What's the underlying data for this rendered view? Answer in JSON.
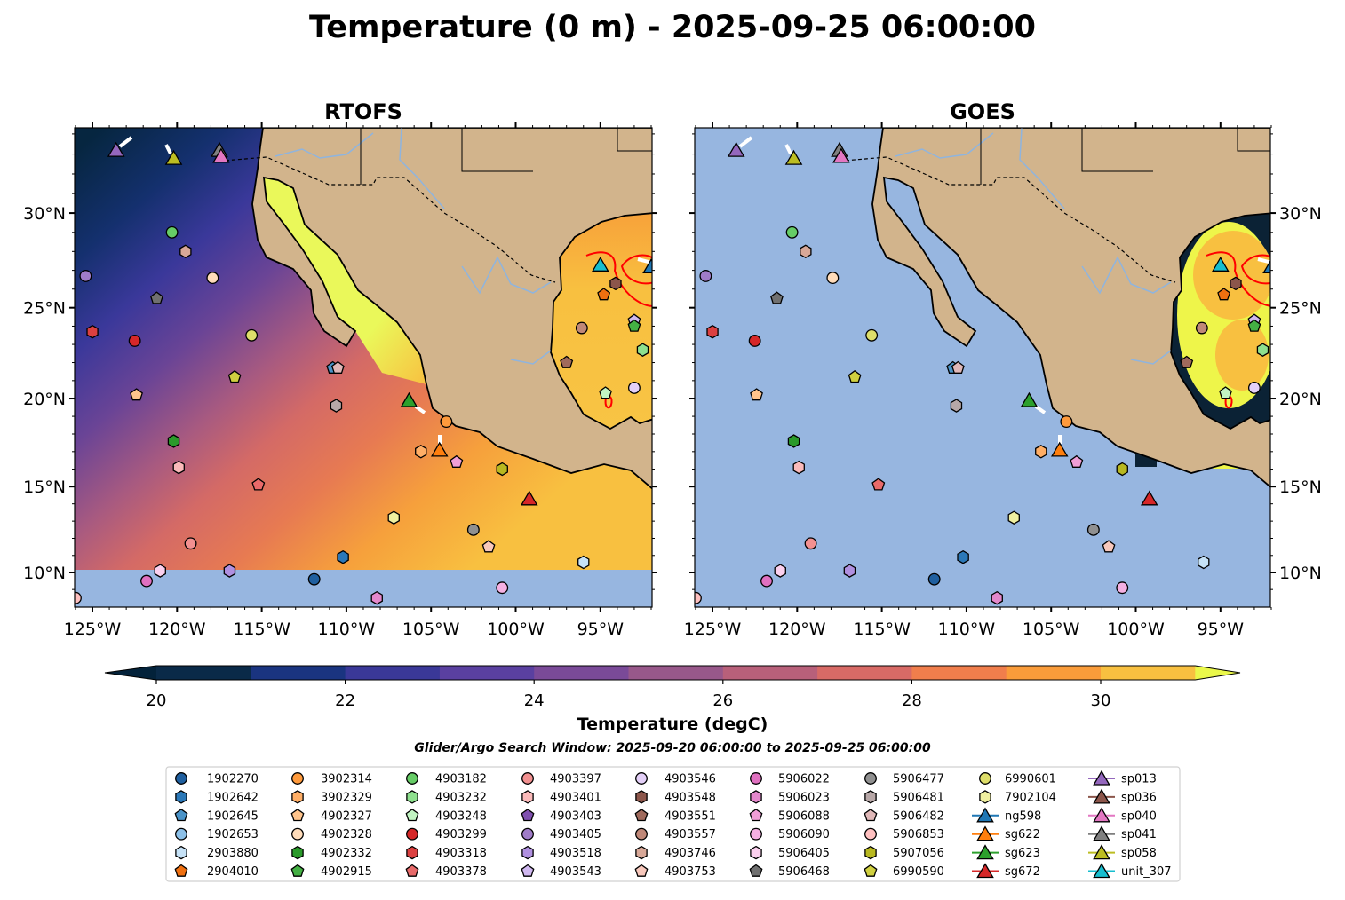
{
  "title": "Temperature (0 m) - 2025-09-25 06:00:00",
  "panels": [
    {
      "title": "RTOFS",
      "field": "rtofs"
    },
    {
      "title": "GOES",
      "field": "goes"
    }
  ],
  "axes": {
    "lon_range": [
      -126.05,
      -91.95
    ],
    "lat_range": [
      8.0,
      34.4
    ],
    "lon_ticks": [
      -125,
      -120,
      -115,
      -110,
      -105,
      -100,
      -95
    ],
    "lon_labels": [
      "125°W",
      "120°W",
      "115°W",
      "110°W",
      "105°W",
      "100°W",
      "95°W"
    ],
    "lat_ticks": [
      10,
      15,
      20,
      25,
      30
    ],
    "lat_labels": [
      "10°N",
      "15°N",
      "20°N",
      "25°N",
      "30°N"
    ]
  },
  "colorbar": {
    "label": "Temperature (degC)",
    "min": 20,
    "max": 31,
    "step": 1,
    "ticks": [
      20,
      22,
      24,
      26,
      28,
      30
    ],
    "tick_labels": [
      "20",
      "22",
      "24",
      "26",
      "28",
      "30"
    ],
    "colors": [
      "#0a2a48",
      "#1a3480",
      "#3a3898",
      "#5a40a0",
      "#7a4a98",
      "#98588a",
      "#b8607a",
      "#d86a66",
      "#f07e4c",
      "#fa9c3a",
      "#f8c040"
    ],
    "under_color": "#03223a",
    "over_color": "#eaf84a"
  },
  "subtitle": "Glider/Argo Search Window: 2025-09-20 06:00:00 to 2025-09-25 06:00:00",
  "legend": [
    {
      "label": "1902270",
      "color": "#1f5f9f",
      "shape": "o"
    },
    {
      "label": "1902642",
      "color": "#2b78b8",
      "shape": "h"
    },
    {
      "label": "1902645",
      "color": "#4a93c8",
      "shape": "p"
    },
    {
      "label": "1902653",
      "color": "#8cc0e8",
      "shape": "o"
    },
    {
      "label": "2903880",
      "color": "#c6e2f7",
      "shape": "h"
    },
    {
      "label": "2904010",
      "color": "#f07010",
      "shape": "p"
    },
    {
      "label": "3902314",
      "color": "#ff9a3c",
      "shape": "o"
    },
    {
      "label": "3902329",
      "color": "#ffae66",
      "shape": "h"
    },
    {
      "label": "4902327",
      "color": "#ffc48c",
      "shape": "p"
    },
    {
      "label": "4902328",
      "color": "#ffdcba",
      "shape": "o"
    },
    {
      "label": "4902332",
      "color": "#2a9a2a",
      "shape": "h"
    },
    {
      "label": "4902915",
      "color": "#44b044",
      "shape": "p"
    },
    {
      "label": "4903182",
      "color": "#66cc66",
      "shape": "o"
    },
    {
      "label": "4903232",
      "color": "#8ee08e",
      "shape": "h"
    },
    {
      "label": "4903248",
      "color": "#c2f5c2",
      "shape": "p"
    },
    {
      "label": "4903299",
      "color": "#d62728",
      "shape": "o"
    },
    {
      "label": "4903318",
      "color": "#dc4040",
      "shape": "h"
    },
    {
      "label": "4903378",
      "color": "#e86a6a",
      "shape": "p"
    },
    {
      "label": "4903397",
      "color": "#f29090",
      "shape": "o"
    },
    {
      "label": "4903401",
      "color": "#fbbaba",
      "shape": "h"
    },
    {
      "label": "4903403",
      "color": "#8050b0",
      "shape": "p"
    },
    {
      "label": "4903405",
      "color": "#a07cc8",
      "shape": "o"
    },
    {
      "label": "4903518",
      "color": "#b090e0",
      "shape": "h"
    },
    {
      "label": "4903543",
      "color": "#d0b8f0",
      "shape": "p"
    },
    {
      "label": "4903546",
      "color": "#e4d0f8",
      "shape": "o"
    },
    {
      "label": "4903548",
      "color": "#8c564b",
      "shape": "h"
    },
    {
      "label": "4903551",
      "color": "#a06a5c",
      "shape": "p"
    },
    {
      "label": "4903557",
      "color": "#c08878",
      "shape": "o"
    },
    {
      "label": "4903746",
      "color": "#d8a898",
      "shape": "h"
    },
    {
      "label": "4903753",
      "color": "#f8c8bc",
      "shape": "p"
    },
    {
      "label": "5906022",
      "color": "#e070c0",
      "shape": "o"
    },
    {
      "label": "5906023",
      "color": "#e488cc",
      "shape": "h"
    },
    {
      "label": "5906088",
      "color": "#f09ed6",
      "shape": "p"
    },
    {
      "label": "5906090",
      "color": "#f5b0e2",
      "shape": "o"
    },
    {
      "label": "5906405",
      "color": "#fbd0ee",
      "shape": "h"
    },
    {
      "label": "5906468",
      "color": "#707070",
      "shape": "p"
    },
    {
      "label": "5906477",
      "color": "#909090",
      "shape": "o"
    },
    {
      "label": "5906481",
      "color": "#b8a8a8",
      "shape": "h"
    },
    {
      "label": "5906482",
      "color": "#e0b8b8",
      "shape": "p"
    },
    {
      "label": "5906853",
      "color": "#ffc0c0",
      "shape": "o"
    },
    {
      "label": "5907056",
      "color": "#b8b820",
      "shape": "h"
    },
    {
      "label": "6990590",
      "color": "#d0d040",
      "shape": "p"
    },
    {
      "label": "6990601",
      "color": "#dede6a",
      "shape": "o"
    },
    {
      "label": "7902104",
      "color": "#f0f0a0",
      "shape": "h"
    },
    {
      "label": "ng598",
      "color": "#1f77b4",
      "shape": "^",
      "line": true
    },
    {
      "label": "sg622",
      "color": "#ff7f0e",
      "shape": "^",
      "line": true
    },
    {
      "label": "sg623",
      "color": "#2ca02c",
      "shape": "^",
      "line": true
    },
    {
      "label": "sg672",
      "color": "#d62728",
      "shape": "^",
      "line": true
    },
    {
      "label": "sp013",
      "color": "#9467bd",
      "shape": "^",
      "line": true
    },
    {
      "label": "sp036",
      "color": "#8c564b",
      "shape": "^",
      "line": true
    },
    {
      "label": "sp040",
      "color": "#e377c2",
      "shape": "^",
      "line": true
    },
    {
      "label": "sp041",
      "color": "#7f7f7f",
      "shape": "^",
      "line": true
    },
    {
      "label": "sp058",
      "color": "#bcbd22",
      "shape": "^",
      "line": true
    },
    {
      "label": "unit_307",
      "color": "#17becf",
      "shape": "^",
      "line": true
    }
  ],
  "observations": [
    {
      "id": "4903405",
      "lon": -125.4,
      "lat": 26.7
    },
    {
      "id": "4903318",
      "lon": -125.0,
      "lat": 23.7
    },
    {
      "id": "4903299",
      "lon": -122.5,
      "lat": 23.2
    },
    {
      "id": "4902327",
      "lon": -122.4,
      "lat": 20.2
    },
    {
      "id": "4903182",
      "lon": -120.3,
      "lat": 29.0
    },
    {
      "id": "4903746",
      "lon": -119.5,
      "lat": 28.0
    },
    {
      "id": "5906468",
      "lon": -121.2,
      "lat": 25.5
    },
    {
      "id": "4902328",
      "lon": -117.9,
      "lat": 26.6
    },
    {
      "id": "6990601",
      "lon": -115.6,
      "lat": 23.5
    },
    {
      "id": "6990590",
      "lon": -116.6,
      "lat": 21.2
    },
    {
      "id": "4902332",
      "lon": -120.2,
      "lat": 17.6
    },
    {
      "id": "4903401",
      "lon": -119.9,
      "lat": 16.1
    },
    {
      "id": "4903378",
      "lon": -115.2,
      "lat": 15.1
    },
    {
      "id": "4903397",
      "lon": -119.2,
      "lat": 11.7
    },
    {
      "id": "5906405",
      "lon": -121.0,
      "lat": 10.1
    },
    {
      "id": "5906022",
      "lon": -121.8,
      "lat": 9.5
    },
    {
      "id": "4903518",
      "lon": -116.9,
      "lat": 10.1
    },
    {
      "id": "5906853",
      "lon": -126.0,
      "lat": 8.5
    },
    {
      "id": "5906023",
      "lon": -108.2,
      "lat": 8.5
    },
    {
      "id": "5906090",
      "lon": -100.8,
      "lat": 9.1
    },
    {
      "id": "2903880",
      "lon": -96.0,
      "lat": 10.6
    },
    {
      "id": "4903753",
      "lon": -101.6,
      "lat": 11.5
    },
    {
      "id": "5906477",
      "lon": -102.5,
      "lat": 12.5
    },
    {
      "id": "7902104",
      "lon": -107.2,
      "lat": 13.2
    },
    {
      "id": "5907056",
      "lon": -100.8,
      "lat": 16.0
    },
    {
      "id": "5906088",
      "lon": -103.5,
      "lat": 16.4
    },
    {
      "id": "3902329",
      "lon": -105.6,
      "lat": 17.0
    },
    {
      "id": "3902314",
      "lon": -104.1,
      "lat": 18.7
    },
    {
      "id": "5906481",
      "lon": -110.6,
      "lat": 19.6
    },
    {
      "id": "1902645",
      "lon": -110.8,
      "lat": 21.7
    },
    {
      "id": "5906482",
      "lon": -110.5,
      "lat": 21.7
    },
    {
      "id": "4903551",
      "lon": -97.0,
      "lat": 22.0
    },
    {
      "id": "4903557",
      "lon": -96.1,
      "lat": 23.9
    },
    {
      "id": "2904010",
      "lon": -94.8,
      "lat": 25.7
    },
    {
      "id": "4903548",
      "lon": -94.1,
      "lat": 26.3
    },
    {
      "id": "4903543",
      "lon": -93.0,
      "lat": 24.3
    },
    {
      "id": "4902915",
      "lon": -93.0,
      "lat": 24.0
    },
    {
      "id": "4903232",
      "lon": -92.5,
      "lat": 22.7
    },
    {
      "id": "4903248",
      "lon": -94.7,
      "lat": 20.3
    },
    {
      "id": "4903546",
      "lon": -93.0,
      "lat": 20.6
    },
    {
      "id": "1902270",
      "lon": -111.9,
      "lat": 9.6
    },
    {
      "id": "1902642",
      "lon": -110.2,
      "lat": 10.9
    },
    {
      "id": "sp013",
      "lon": -123.6,
      "lat": 33.2
    },
    {
      "id": "sp058",
      "lon": -120.2,
      "lat": 32.8
    },
    {
      "id": "sp041",
      "lon": -117.5,
      "lat": 33.2
    },
    {
      "id": "sp040",
      "lon": -117.4,
      "lat": 32.9
    },
    {
      "id": "sg623",
      "lon": -106.3,
      "lat": 19.9
    },
    {
      "id": "sg622",
      "lon": -104.5,
      "lat": 17.1
    },
    {
      "id": "sg672",
      "lon": -99.2,
      "lat": 14.3
    },
    {
      "id": "unit_307",
      "lon": -95.0,
      "lat": 27.3
    },
    {
      "id": "ng598",
      "lon": -92.0,
      "lat": 27.2
    }
  ]
}
